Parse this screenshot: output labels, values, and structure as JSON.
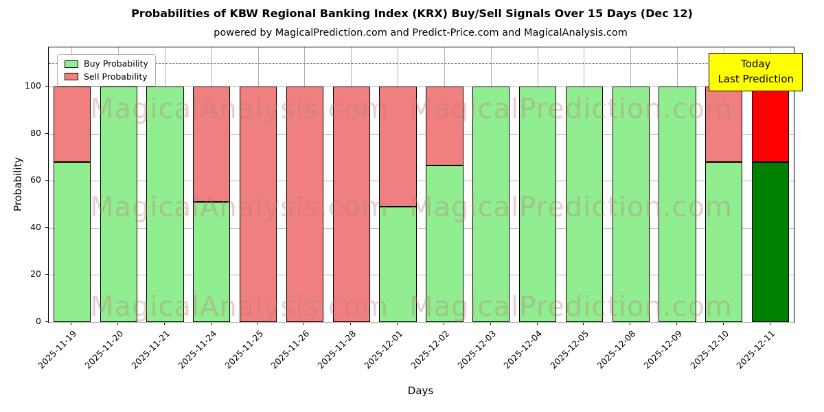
{
  "title": "Probabilities of KBW Regional Banking Index (KRX) Buy/Sell Signals Over 15 Days (Dec 12)",
  "subtitle": "powered by MagicalPrediction.com and Predict-Price.com and MagicalAnalysis.com",
  "legend": [
    {
      "label": "Buy Probability",
      "color": "#90EE90"
    },
    {
      "label": "Sell Probability",
      "color": "#F08080"
    }
  ],
  "annotation": {
    "line1": "Today",
    "line2": "Last Prediction",
    "bg": "#FFFF00"
  },
  "watermarks": [
    "MagicalAnalysis.com",
    "MagicalPrediction.com"
  ],
  "chart_data": {
    "type": "bar",
    "stacked": true,
    "title": "Probabilities of KBW Regional Banking Index (KRX) Buy/Sell Signals Over 15 Days (Dec 12)",
    "xlabel": "Days",
    "ylabel": "Probability",
    "ylim": [
      0,
      116.6
    ],
    "yticks": [
      0,
      20,
      40,
      60,
      80,
      100
    ],
    "dashed_line_y": 110,
    "grid": true,
    "legend_position": "upper left",
    "categories": [
      "2025-11-19",
      "2025-11-20",
      "2025-11-21",
      "2025-11-24",
      "2025-11-25",
      "2025-11-26",
      "2025-11-28",
      "2025-12-01",
      "2025-12-02",
      "2025-12-03",
      "2025-12-04",
      "2025-12-05",
      "2025-12-08",
      "2025-12-09",
      "2025-12-10",
      "2025-12-11"
    ],
    "series": [
      {
        "name": "Buy Probability",
        "color": "#90EE90",
        "values": [
          68,
          100,
          100,
          51,
          0,
          0,
          0,
          49,
          66.5,
          100,
          100,
          100,
          100,
          100,
          68,
          68
        ]
      },
      {
        "name": "Sell Probability",
        "color": "#F08080",
        "values": [
          32,
          0,
          0,
          49,
          100,
          100,
          100,
          51,
          33.5,
          0,
          0,
          0,
          0,
          0,
          32,
          32
        ]
      }
    ],
    "today_index": 15,
    "today_colors": {
      "buy": "#008000",
      "sell": "#FF0000"
    }
  }
}
